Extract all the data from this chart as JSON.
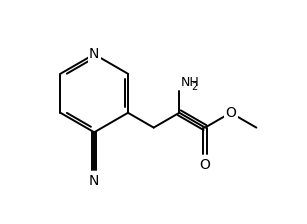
{
  "bg_color": "#ffffff",
  "line_color": "#000000",
  "line_width": 1.4,
  "font_size_atom": 9,
  "font_size_sub": 7,
  "fig_width": 3.07,
  "fig_height": 2.24,
  "dpi": 100,
  "xlim": [
    0.0,
    7.5
  ],
  "ylim": [
    0.5,
    7.5
  ]
}
